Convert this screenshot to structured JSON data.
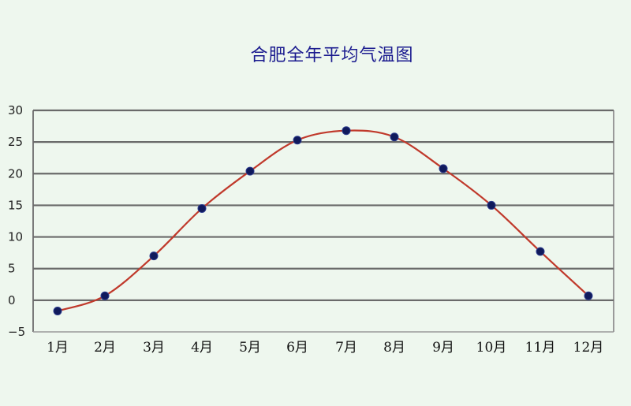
{
  "chart_data": {
    "type": "line",
    "title": "合肥全年平均气温图",
    "xlabel": "",
    "ylabel": "",
    "categories": [
      "1月",
      "2月",
      "3月",
      "4月",
      "5月",
      "6月",
      "7月",
      "8月",
      "9月",
      "10月",
      "11月",
      "12月"
    ],
    "values": [
      -1.7,
      0.7,
      7.0,
      14.5,
      20.4,
      25.3,
      26.8,
      25.8,
      20.8,
      15.0,
      7.7,
      0.7
    ],
    "ylim": [
      -5,
      30
    ],
    "yticks": [
      "30",
      "25",
      "20",
      "15",
      "10",
      "5",
      "0",
      "−5"
    ],
    "grid": true,
    "colors": {
      "line": "#c0392b",
      "marker": "#101a5c",
      "grid": "#6a6a6a",
      "title": "#1b1b8f"
    }
  }
}
